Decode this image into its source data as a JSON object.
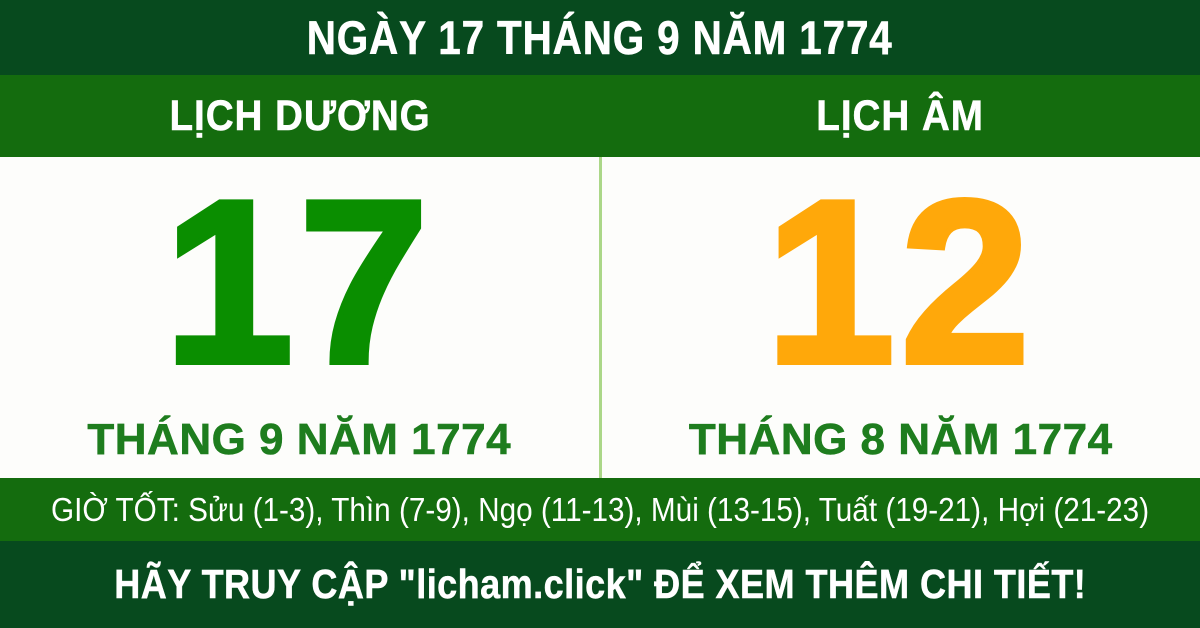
{
  "header": {
    "title": "NGÀY 17 THÁNG 9 NĂM 1774"
  },
  "columns": {
    "solar": {
      "heading": "LỊCH DƯƠNG",
      "day": "17",
      "month_year": "THÁNG 9 NĂM 1774"
    },
    "lunar": {
      "heading": "LỊCH ÂM",
      "day": "12",
      "month_year": "THÁNG 8 NĂM 1774"
    }
  },
  "good_hours": {
    "text": "GIỜ TỐT: Sửu (1-3), Thìn (7-9), Ngọ (11-13), Mùi (13-15), Tuất (19-21), Hợi (21-23)"
  },
  "footer": {
    "text": "HÃY TRUY CẬP \"licham.click\" ĐỂ XEM THÊM CHI TIẾT!"
  },
  "colors": {
    "dark_green": "#074a1e",
    "medium_green": "#146c0e",
    "solar_day_green": "#0a8e00",
    "month_label_green": "#1e7d1e",
    "lunar_day_orange": "#ffa80a",
    "divider_light_green": "#abd788",
    "panel_white": "#fdfdfb",
    "text_white": "#ffffff"
  }
}
